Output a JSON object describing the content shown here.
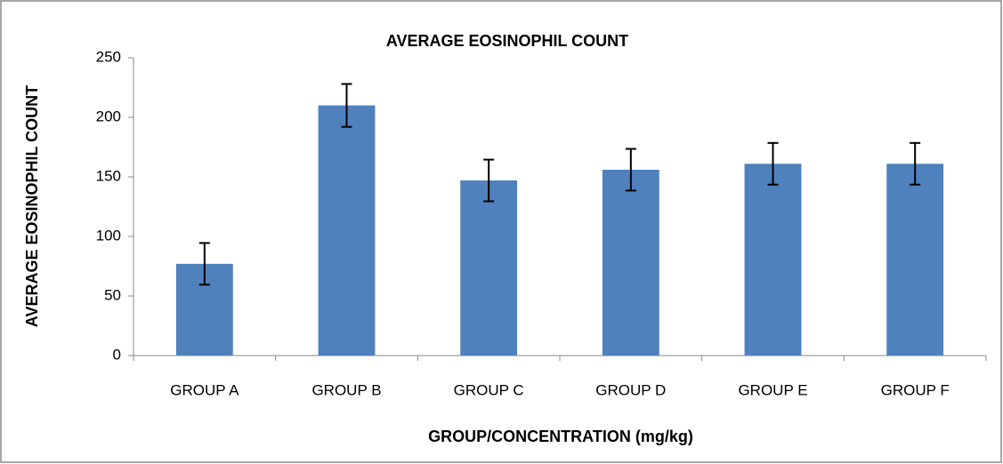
{
  "chart_data": {
    "type": "bar",
    "title": "AVERAGE EOSINOPHIL COUNT",
    "x_label": "GROUP/CONCENTRATION (mg/kg)",
    "y_label": "AVERAGE EOSINOPHIL COUNT",
    "categories": [
      "GROUP A",
      "GROUP B",
      "GROUP C",
      "GROUP D",
      "GROUP E",
      "GROUP F"
    ],
    "values": [
      77,
      210,
      147,
      156,
      161,
      161
    ],
    "errors": [
      17.5,
      18,
      17.5,
      17.5,
      17.5,
      17.5
    ],
    "color": "#4f81bd",
    "ylim": [
      0,
      250
    ],
    "yticks": [
      0,
      50,
      100,
      150,
      200,
      250
    ],
    "grid": false
  }
}
